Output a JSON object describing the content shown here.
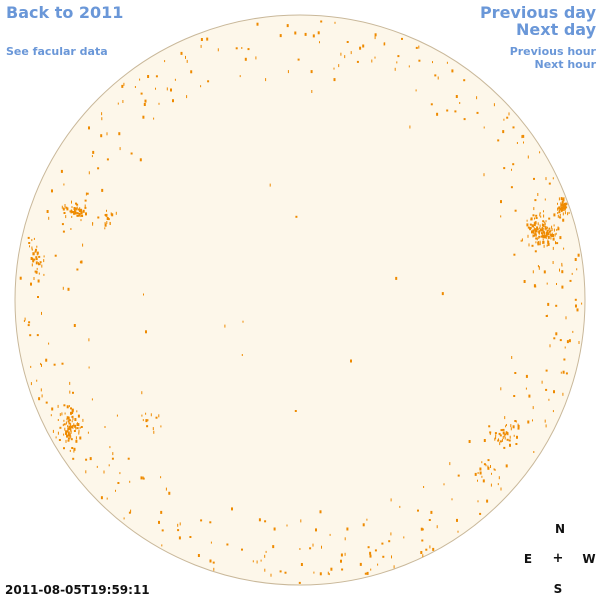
{
  "nav": {
    "back": "Back to 2011",
    "facular": "See facular data",
    "previous_day": "Previous day",
    "next_day": "Next day",
    "previous_hour": "Previous hour",
    "next_hour": "Next hour"
  },
  "timestamp": "2011-08-05T19:59:11",
  "compass": {
    "north": "N",
    "east": "E",
    "center": "+",
    "west": "W",
    "south": "S"
  },
  "colors": {
    "link": "#6a97d8",
    "disk_fill": "#fdf7ea",
    "disk_outline": "#c9b89a",
    "facula": "#ee8a00"
  }
}
